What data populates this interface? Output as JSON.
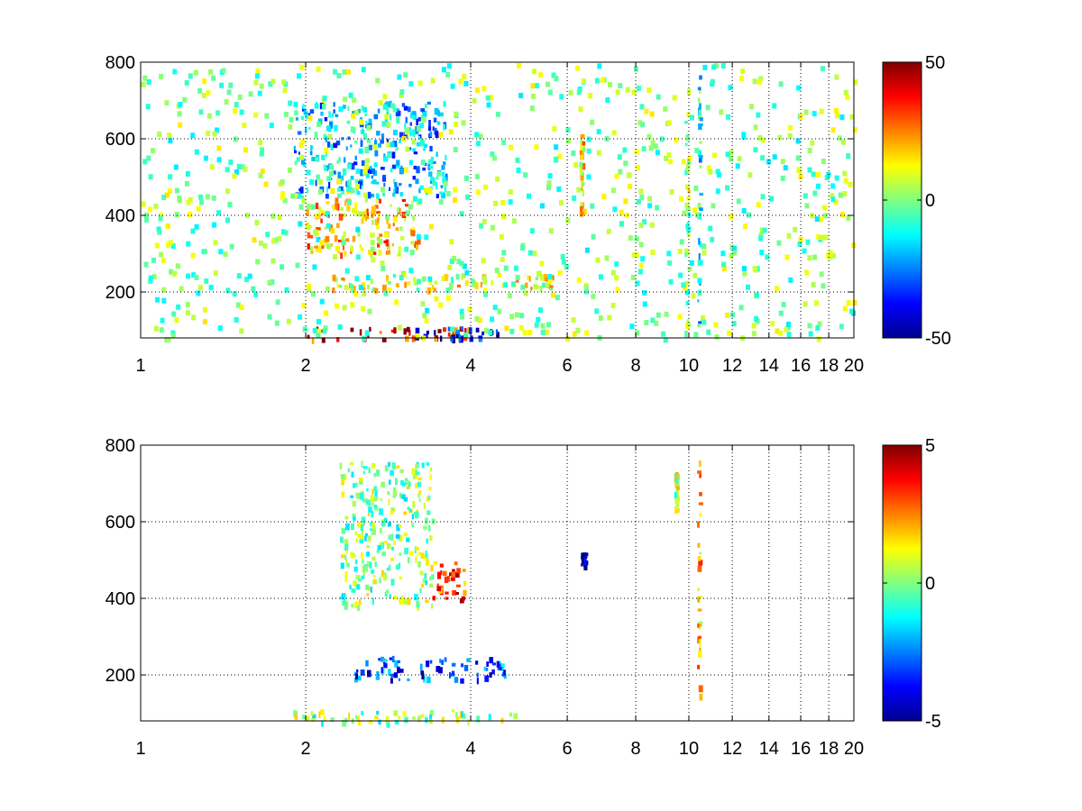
{
  "chart_data": [
    {
      "type": "heatmap",
      "title": "",
      "xlabel": "",
      "ylabel": "",
      "xlim": [
        1,
        20
      ],
      "ylim": [
        80,
        800
      ],
      "x_scale": "log",
      "x_ticks": [
        1,
        2,
        4,
        6,
        8,
        10,
        12,
        14,
        16,
        18,
        20
      ],
      "x_tick_labels": [
        "1",
        "2",
        "4",
        "6",
        "8",
        "10",
        "12",
        "14",
        "16",
        "18",
        "20"
      ],
      "y_ticks": [
        200,
        400,
        600,
        800
      ],
      "y_tick_labels": [
        "200",
        "400",
        "600",
        "800"
      ],
      "grid": true,
      "colormap": "jet",
      "colorbar": {
        "min": -50,
        "max": 50,
        "ticks": [
          50,
          0,
          -50
        ],
        "tick_labels": [
          "50",
          "0",
          "-50"
        ],
        "placement": "right"
      },
      "features": [
        {
          "x_range": [
            1.9,
            3.6
          ],
          "y_range": [
            450,
            700
          ],
          "level": -20
        },
        {
          "x_range": [
            2.0,
            3.2
          ],
          "y_range": [
            300,
            450
          ],
          "level": 20
        },
        {
          "x_range": [
            2.0,
            4.0
          ],
          "y_range": [
            80,
            110
          ],
          "level": 35
        },
        {
          "x_range": [
            3.0,
            4.5
          ],
          "y_range": [
            80,
            110
          ],
          "level": -40
        },
        {
          "x_range": [
            2.2,
            5.8
          ],
          "y_range": [
            210,
            250
          ],
          "level": 10
        },
        {
          "x_range": [
            9.8,
            9.95
          ],
          "y_range": [
            80,
            800
          ],
          "level": 5
        },
        {
          "x_range": [
            10.35,
            10.45
          ],
          "y_range": [
            80,
            800
          ],
          "level": -12
        },
        {
          "x_range": [
            6.3,
            6.4
          ],
          "y_range": [
            400,
            620
          ],
          "level": 15
        }
      ]
    },
    {
      "type": "heatmap",
      "title": "",
      "xlabel": "",
      "ylabel": "",
      "xlim": [
        1,
        20
      ],
      "ylim": [
        80,
        800
      ],
      "x_scale": "log",
      "x_ticks": [
        1,
        2,
        4,
        6,
        8,
        10,
        12,
        14,
        16,
        18,
        20
      ],
      "x_tick_labels": [
        "1",
        "2",
        "4",
        "6",
        "8",
        "10",
        "12",
        "14",
        "16",
        "18",
        "20"
      ],
      "y_ticks": [
        200,
        400,
        600,
        800
      ],
      "y_tick_labels": [
        "200",
        "400",
        "600",
        "800"
      ],
      "grid": true,
      "colormap": "jet",
      "colorbar": {
        "min": -5,
        "max": 5,
        "ticks": [
          5,
          0,
          -5
        ],
        "tick_labels": [
          "5",
          "0",
          "-5"
        ],
        "placement": "right"
      },
      "features": [
        {
          "x_range": [
            2.3,
            3.4
          ],
          "y_range": [
            380,
            760
          ],
          "level": 0
        },
        {
          "x_range": [
            3.4,
            3.9
          ],
          "y_range": [
            400,
            500
          ],
          "level": 3
        },
        {
          "x_range": [
            2.4,
            4.6
          ],
          "y_range": [
            190,
            250
          ],
          "level": -3
        },
        {
          "x_range": [
            1.8,
            4.8
          ],
          "y_range": [
            80,
            110
          ],
          "level": 0
        },
        {
          "x_range": [
            10.35,
            10.45
          ],
          "y_range": [
            150,
            780
          ],
          "level": 2
        },
        {
          "x_range": [
            9.4,
            9.5
          ],
          "y_range": [
            630,
            730
          ],
          "level": 0.5
        },
        {
          "x_range": [
            6.35,
            6.45
          ],
          "y_range": [
            490,
            520
          ],
          "level": -5
        }
      ]
    }
  ]
}
